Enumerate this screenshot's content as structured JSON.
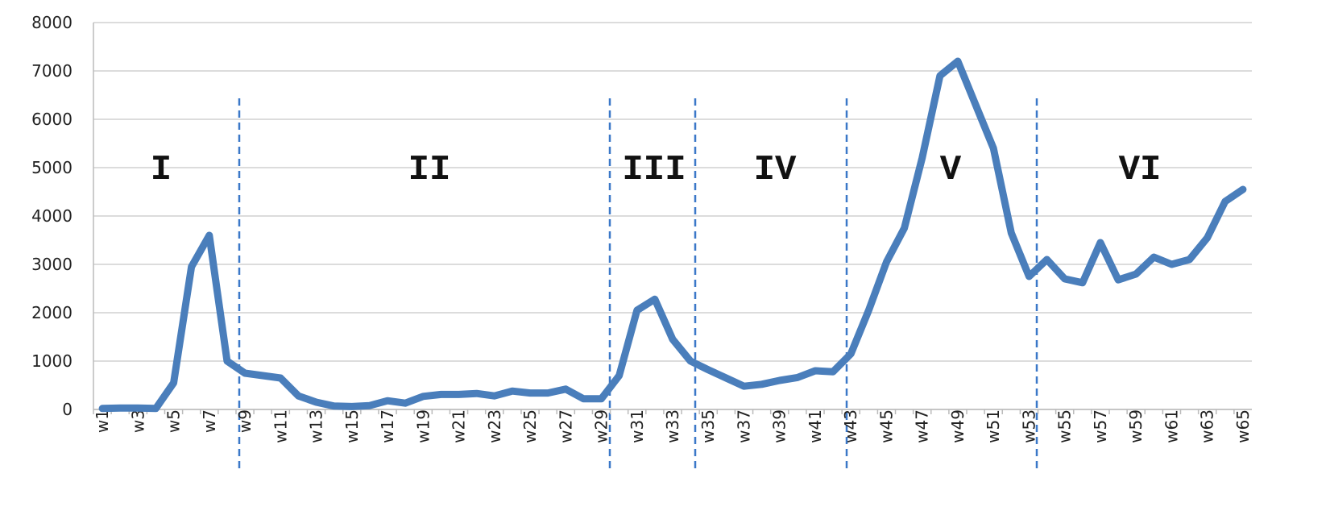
{
  "chart_data": {
    "type": "line",
    "categories": [
      "w1",
      null,
      "w3",
      null,
      "w5",
      null,
      "w7",
      null,
      "w9",
      null,
      "w11",
      null,
      "w13",
      null,
      "w15",
      null,
      "w17",
      null,
      "w19",
      null,
      "w21",
      null,
      "w23",
      null,
      "w25",
      null,
      "w27",
      null,
      "w29",
      null,
      "w31",
      null,
      "w33",
      null,
      "w35",
      null,
      "w37",
      null,
      "w39",
      null,
      "w41",
      null,
      "w43",
      null,
      "w45",
      null,
      "w47",
      null,
      "w49",
      null,
      "w51",
      null,
      "w53",
      null,
      "w55",
      null,
      "w57",
      null,
      "w59",
      null,
      "w61",
      null,
      "w63",
      null,
      "w65"
    ],
    "values": [
      20,
      30,
      30,
      20,
      550,
      2950,
      3600,
      1000,
      750,
      700,
      650,
      280,
      150,
      70,
      60,
      80,
      180,
      130,
      270,
      310,
      310,
      330,
      280,
      380,
      340,
      340,
      420,
      220,
      220,
      700,
      2050,
      2280,
      1450,
      1000,
      820,
      650,
      480,
      520,
      600,
      660,
      800,
      780,
      1150,
      2050,
      3050,
      3750,
      5200,
      6900,
      7200,
      6300,
      5400,
      3650,
      2750,
      3100,
      2700,
      2620,
      3450,
      2680,
      2800,
      3150,
      3000,
      3100,
      3550,
      4300,
      4550
    ],
    "color": "#4a7ebb",
    "ylim": [
      0,
      8000
    ],
    "yticks": [
      0,
      1000,
      2000,
      3000,
      4000,
      5000,
      6000,
      7000,
      8000
    ],
    "grid": true,
    "annotations": [
      "I",
      "II",
      "III",
      "IV",
      "V",
      "VI"
    ]
  }
}
